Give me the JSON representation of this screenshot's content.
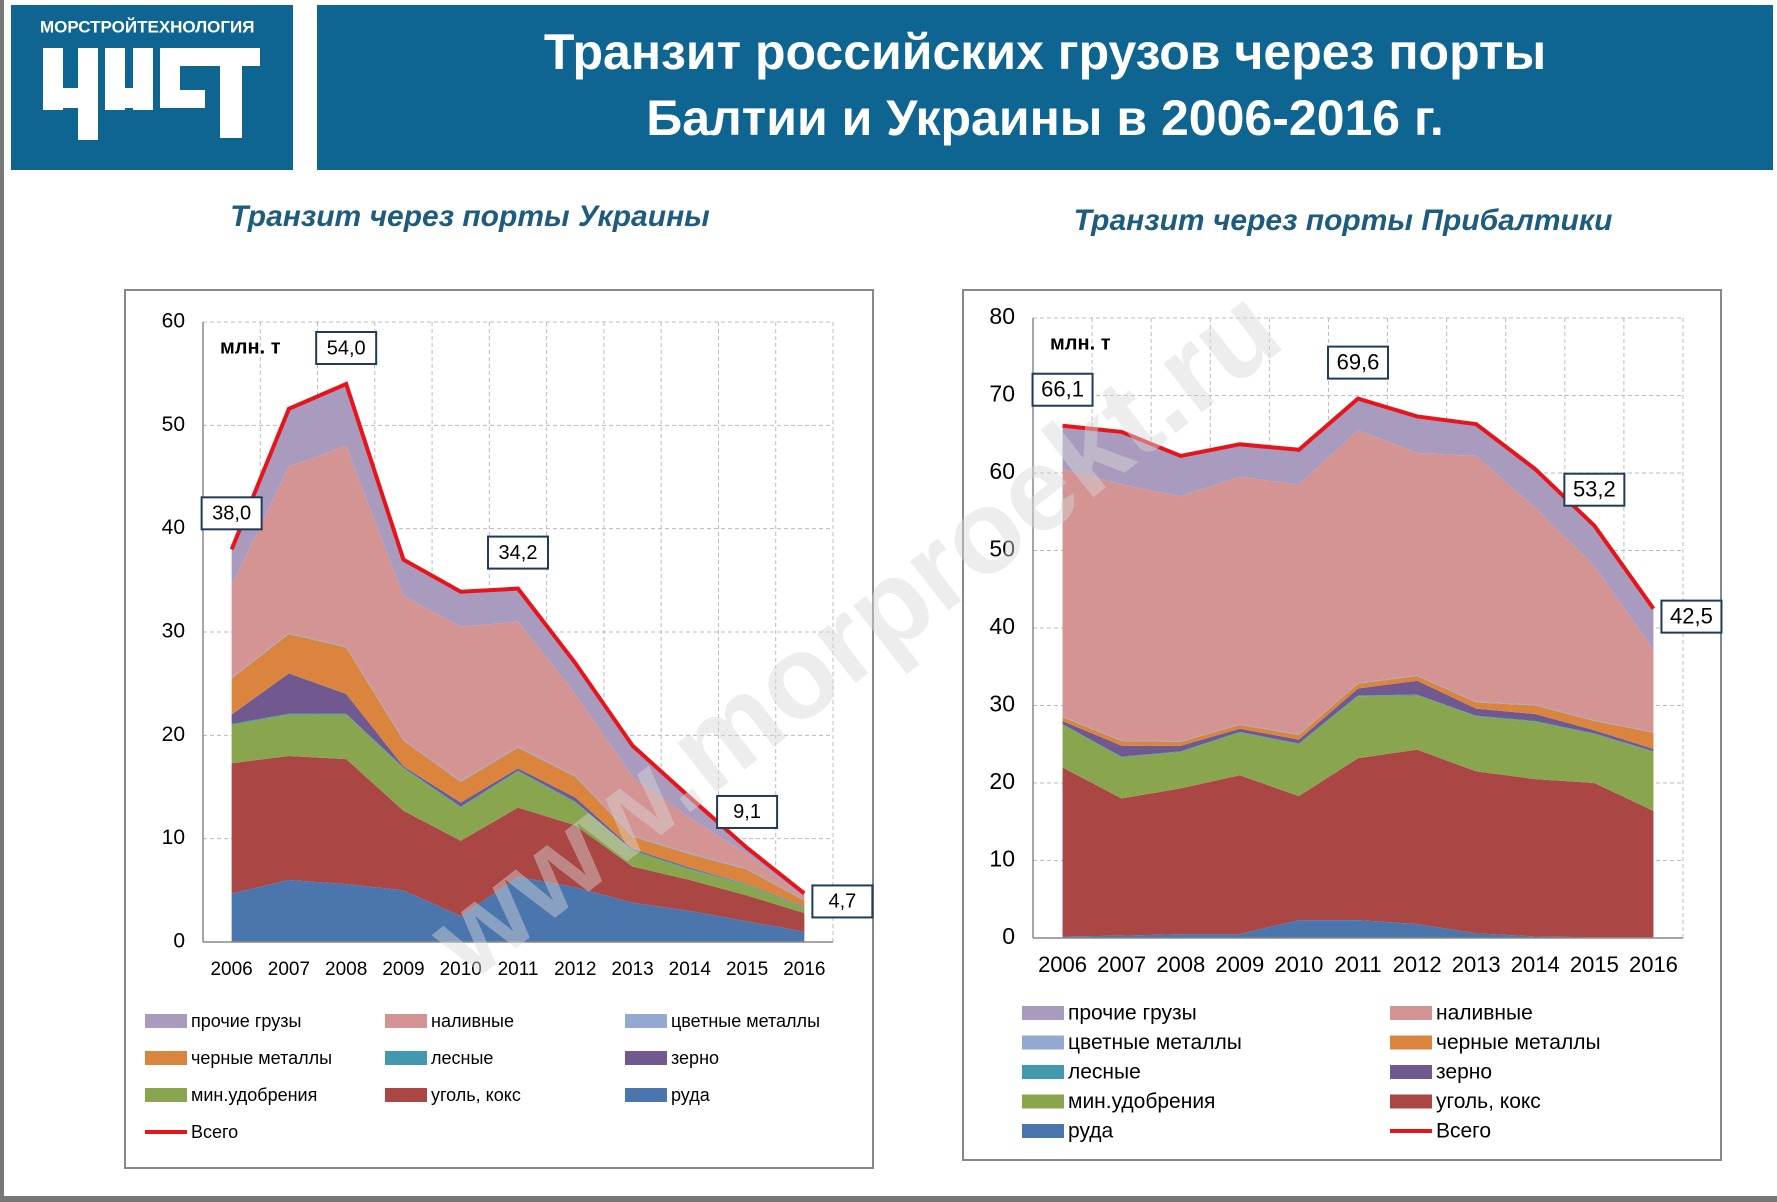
{
  "header": {
    "logo_text": "МОРСТРОЙТЕХНОЛОГИЯ",
    "title_lines": [
      "Транзит российских грузов через порты",
      "Балтии и Украины в 2006-2016 г."
    ]
  },
  "watermark": "www.morproekt.ru",
  "chart_data": [
    {
      "type": "area",
      "title": "Транзит через порты Украины",
      "unit_label": "млн. т",
      "categories": [
        "2006",
        "2007",
        "2008",
        "2009",
        "2010",
        "2011",
        "2012",
        "2013",
        "2014",
        "2015",
        "2016"
      ],
      "ylim": [
        0,
        60
      ],
      "yticks": [
        0,
        10,
        20,
        30,
        40,
        50,
        60
      ],
      "grid": true,
      "series": [
        {
          "name": "руда",
          "color": "#4a76ad",
          "values": [
            4.7,
            6.0,
            5.6,
            5.0,
            2.5,
            6.3,
            5.3,
            3.8,
            3.0,
            2.0,
            1.0
          ]
        },
        {
          "name": "уголь, кокс",
          "color": "#aa4643",
          "values": [
            12.6,
            12.0,
            12.1,
            7.7,
            7.3,
            6.7,
            6.0,
            3.5,
            3.0,
            2.5,
            1.8
          ]
        },
        {
          "name": "мин.удобрения",
          "color": "#89a54e",
          "values": [
            3.7,
            4.0,
            4.3,
            4.1,
            3.2,
            3.5,
            2.2,
            1.5,
            1.0,
            1.0,
            0.5
          ]
        },
        {
          "name": "лесные",
          "color": "#4198af",
          "values": [
            0.1,
            0.1,
            0.1,
            0.1,
            0.1,
            0.1,
            0.1,
            0.1,
            0.1,
            0.1,
            0.1
          ]
        },
        {
          "name": "зерно",
          "color": "#71588f",
          "values": [
            0.9,
            3.9,
            1.9,
            0.1,
            0.4,
            0.2,
            0.4,
            0.1,
            0.1,
            0,
            0
          ]
        },
        {
          "name": "черные металлы",
          "color": "#db843d",
          "values": [
            3.5,
            3.8,
            4.5,
            2.5,
            2.0,
            2.0,
            2.0,
            1.2,
            1.3,
            1.4,
            0.6
          ]
        },
        {
          "name": " цветные металлы",
          "color": "#93a9cf",
          "values": [
            0.1,
            0.1,
            0.1,
            0.1,
            0.1,
            0.1,
            0.1,
            0.1,
            0.1,
            0.1,
            0.1
          ]
        },
        {
          "name": "наливные",
          "color": "#d39493",
          "values": [
            8.9,
            16.1,
            19.4,
            13.9,
            14.9,
            12.1,
            7.9,
            5.7,
            3.4,
            1.4,
            0.2
          ]
        },
        {
          "name": "прочие грузы",
          "color": "#a99bbd",
          "values": [
            3.4,
            5.5,
            5.9,
            3.4,
            3.3,
            3.1,
            2.9,
            2.9,
            1.9,
            0.5,
            0.3
          ]
        },
        {
          "name": "Всего",
          "color": "#e8141a",
          "kind": "line",
          "values": [
            38.0,
            51.6,
            54.0,
            37.0,
            33.9,
            34.2,
            27.0,
            19.0,
            14.0,
            9.1,
            4.7
          ],
          "value_labels": [
            "38,0",
            null,
            "54,0",
            null,
            null,
            "34,2",
            null,
            null,
            null,
            "9,1",
            "4,7"
          ]
        }
      ]
    },
    {
      "type": "area",
      "title": "Транзит через порты Прибалтики",
      "unit_label": "млн. т",
      "categories": [
        "2006",
        "2007",
        "2008",
        "2009",
        "2010",
        "2011",
        "2012",
        "2013",
        "2014",
        "2015",
        "2016"
      ],
      "ylim": [
        0,
        80
      ],
      "yticks": [
        0,
        10,
        20,
        30,
        40,
        50,
        60,
        70,
        80
      ],
      "grid": true,
      "series": [
        {
          "name": "руда",
          "color": "#4a76ad",
          "values": [
            0.2,
            0.3,
            0.5,
            0.5,
            2.3,
            2.3,
            1.8,
            0.6,
            0.2,
            0.1,
            0.1
          ]
        },
        {
          "name": "уголь, кокс",
          "color": "#aa4643",
          "values": [
            21.8,
            17.7,
            18.8,
            20.5,
            16.0,
            20.9,
            22.5,
            20.9,
            20.3,
            19.9,
            16.3
          ]
        },
        {
          "name": "мин.удобрения",
          "color": "#89a54e",
          "values": [
            5.5,
            5.3,
            4.7,
            5.5,
            6.7,
            8.0,
            7.0,
            7.1,
            7.4,
            6.3,
            7.6
          ]
        },
        {
          "name": "лесные",
          "color": "#4198af",
          "values": [
            0.1,
            0.1,
            0.1,
            0.1,
            0.1,
            0.1,
            0.1,
            0.1,
            0.1,
            0.1,
            0.1
          ]
        },
        {
          "name": "зерно",
          "color": "#71588f",
          "values": [
            0.4,
            1.4,
            0.7,
            0.4,
            0.5,
            0.9,
            1.8,
            0.9,
            0.9,
            0.4,
            0.3
          ]
        },
        {
          "name": "черные металлы",
          "color": "#db843d",
          "values": [
            0.5,
            0.6,
            0.5,
            0.5,
            0.6,
            0.6,
            0.6,
            0.8,
            1.1,
            1.2,
            2.1
          ]
        },
        {
          "name": " цветные металлы",
          "color": "#93a9cf",
          "values": [
            0.1,
            0.1,
            0.1,
            0.1,
            0.1,
            0.1,
            0.1,
            0.1,
            0.1,
            0.1,
            0.1
          ]
        },
        {
          "name": "наливные",
          "color": "#d39493",
          "values": [
            31.9,
            33.0,
            31.6,
            31.9,
            32.2,
            32.6,
            28.7,
            31.7,
            25.4,
            19.9,
            10.6
          ]
        },
        {
          "name": "прочие грузы",
          "color": "#a99bbd",
          "values": [
            5.6,
            6.8,
            5.2,
            4.2,
            4.5,
            4.1,
            4.7,
            4.1,
            5.0,
            5.2,
            5.3
          ]
        },
        {
          "name": "Всего",
          "color": "#e8141a",
          "kind": "line",
          "values": [
            66.1,
            65.3,
            62.2,
            63.7,
            63.0,
            69.6,
            67.3,
            66.3,
            60.5,
            53.2,
            42.5
          ],
          "value_labels": [
            "66,1",
            null,
            null,
            null,
            null,
            "69,6",
            null,
            null,
            null,
            "53,2",
            "42,5"
          ]
        }
      ]
    }
  ]
}
